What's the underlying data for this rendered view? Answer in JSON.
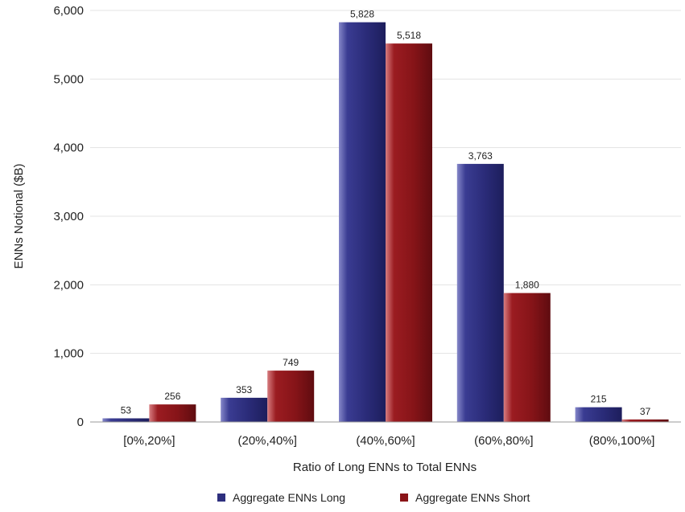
{
  "chart_data": {
    "type": "bar",
    "title": "",
    "xlabel": "Ratio of Long ENNs to Total ENNs",
    "ylabel": "ENNs Notional ($B)",
    "ylim": [
      0,
      6000
    ],
    "yticks": [
      0,
      1000,
      2000,
      3000,
      4000,
      5000,
      6000
    ],
    "ytick_labels": [
      "0",
      "1,000",
      "2,000",
      "3,000",
      "4,000",
      "5,000",
      "6,000"
    ],
    "grid": true,
    "legend_position": "bottom",
    "categories": [
      "[0%,20%]",
      "(20%,40%]",
      "(40%,60%]",
      "(60%,80%]",
      "(80%,100%]"
    ],
    "series": [
      {
        "name": "Aggregate ENNs Long",
        "color": "#2e2f7e",
        "values": [
          53,
          353,
          5828,
          3763,
          215
        ],
        "labels": [
          "53",
          "353",
          "5,828",
          "3,763",
          "215"
        ]
      },
      {
        "name": "Aggregate ENNs Short",
        "color": "#8a1418",
        "values": [
          256,
          749,
          5518,
          1880,
          37
        ],
        "labels": [
          "256",
          "749",
          "5,518",
          "1,880",
          "37"
        ]
      }
    ]
  }
}
